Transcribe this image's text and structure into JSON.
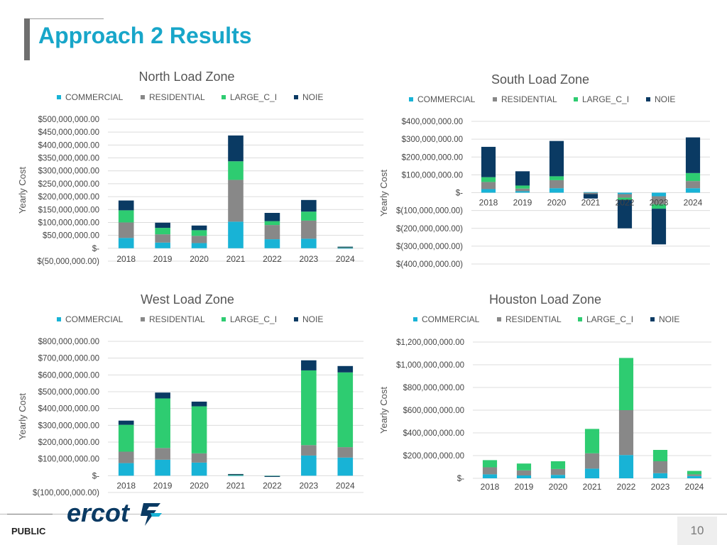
{
  "page": {
    "title": "Approach 2 Results",
    "footer_label": "PUBLIC",
    "page_number": "10",
    "logo_text": "ercot"
  },
  "colors": {
    "COMMERCIAL": "#18b3d6",
    "RESIDENTIAL": "#888888",
    "LARGE_C_I": "#2ecc71",
    "NOIE": "#0a3a63",
    "title": "#18a6c9",
    "logo": "#0a3a63"
  },
  "chart_data": [
    {
      "id": "north",
      "type": "bar",
      "stacked": true,
      "title": "North Load Zone",
      "ylabel": "Yearly Cost",
      "xlabel": "",
      "categories": [
        "2018",
        "2019",
        "2020",
        "2021",
        "2022",
        "2023",
        "2024"
      ],
      "ylim": [
        -50000000,
        500000000
      ],
      "yticks": [
        -50000000,
        0,
        50000000,
        100000000,
        150000000,
        200000000,
        250000000,
        300000000,
        350000000,
        400000000,
        450000000,
        500000000
      ],
      "ytick_labels": [
        "$(50,000,000.00)",
        "$-",
        "$50,000,000.00",
        "$100,000,000.00",
        "$150,000,000.00",
        "$200,000,000.00",
        "$250,000,000.00",
        "$300,000,000.00",
        "$350,000,000.00",
        "$400,000,000.00",
        "$450,000,000.00",
        "$500,000,000.00"
      ],
      "legend": [
        "COMMERCIAL",
        "RESIDENTIAL",
        "LARGE_C_I",
        "NOIE"
      ],
      "series": [
        {
          "name": "COMMERCIAL",
          "values": [
            40000000,
            22000000,
            20000000,
            103000000,
            35000000,
            37000000,
            1000000
          ]
        },
        {
          "name": "RESIDENTIAL",
          "values": [
            60000000,
            32000000,
            28000000,
            162000000,
            55000000,
            70000000,
            2000000
          ]
        },
        {
          "name": "LARGE_C_I",
          "values": [
            47000000,
            25000000,
            22000000,
            72000000,
            15000000,
            35000000,
            2000000
          ]
        },
        {
          "name": "NOIE",
          "values": [
            38000000,
            20000000,
            18000000,
            100000000,
            32000000,
            45000000,
            1000000
          ]
        }
      ]
    },
    {
      "id": "south",
      "type": "bar",
      "stacked": true,
      "title": "South Load Zone",
      "ylabel": "Yearly Cost",
      "xlabel": "",
      "categories": [
        "2018",
        "2019",
        "2020",
        "2021",
        "2022",
        "2023",
        "2024"
      ],
      "ylim": [
        -400000000,
        400000000
      ],
      "yticks": [
        -400000000,
        -300000000,
        -200000000,
        -100000000,
        0,
        100000000,
        200000000,
        300000000,
        400000000
      ],
      "ytick_labels": [
        "$(400,000,000.00)",
        "$(300,000,000.00)",
        "$(200,000,000.00)",
        "$(100,000,000.00)",
        "$-",
        "$100,000,000.00",
        "$200,000,000.00",
        "$300,000,000.00",
        "$400,000,000.00"
      ],
      "legend": [
        "COMMERCIAL",
        "RESIDENTIAL",
        "LARGE_C_I",
        "NOIE"
      ],
      "series": [
        {
          "name": "COMMERCIAL",
          "values": [
            20000000,
            8000000,
            25000000,
            3000000,
            -8000000,
            -20000000,
            25000000
          ]
        },
        {
          "name": "RESIDENTIAL",
          "values": [
            40000000,
            15000000,
            45000000,
            -8000000,
            -20000000,
            -45000000,
            40000000
          ]
        },
        {
          "name": "LARGE_C_I",
          "values": [
            27000000,
            17000000,
            22000000,
            0,
            -12000000,
            -25000000,
            45000000
          ]
        },
        {
          "name": "NOIE",
          "values": [
            170000000,
            80000000,
            198000000,
            -25000000,
            -160000000,
            -200000000,
            200000000
          ]
        }
      ]
    },
    {
      "id": "west",
      "type": "bar",
      "stacked": true,
      "title": "West Load Zone",
      "ylabel": "Yearly Cost",
      "xlabel": "",
      "categories": [
        "2018",
        "2019",
        "2020",
        "2021",
        "2022",
        "2023",
        "2024"
      ],
      "ylim": [
        -100000000,
        800000000
      ],
      "yticks": [
        -100000000,
        0,
        100000000,
        200000000,
        300000000,
        400000000,
        500000000,
        600000000,
        700000000,
        800000000
      ],
      "ytick_labels": [
        "$(100,000,000.00)",
        "$-",
        "$100,000,000.00",
        "$200,000,000.00",
        "$300,000,000.00",
        "$400,000,000.00",
        "$500,000,000.00",
        "$600,000,000.00",
        "$700,000,000.00",
        "$800,000,000.00"
      ],
      "legend": [
        "COMMERCIAL",
        "RESIDENTIAL",
        "LARGE_C_I",
        "NOIE"
      ],
      "series": [
        {
          "name": "COMMERCIAL",
          "values": [
            75000000,
            95000000,
            78000000,
            2000000,
            -1000000,
            120000000,
            108000000
          ]
        },
        {
          "name": "RESIDENTIAL",
          "values": [
            68000000,
            70000000,
            55000000,
            3000000,
            -1000000,
            62000000,
            62000000
          ]
        },
        {
          "name": "LARGE_C_I",
          "values": [
            160000000,
            295000000,
            280000000,
            3000000,
            -1000000,
            445000000,
            445000000
          ]
        },
        {
          "name": "NOIE",
          "values": [
            25000000,
            35000000,
            28000000,
            2000000,
            -1000000,
            60000000,
            38000000
          ]
        }
      ]
    },
    {
      "id": "houston",
      "type": "bar",
      "stacked": true,
      "title": "Houston Load Zone",
      "ylabel": "Yearly Cost",
      "xlabel": "",
      "categories": [
        "2018",
        "2019",
        "2020",
        "2021",
        "2022",
        "2023",
        "2024"
      ],
      "ylim": [
        0,
        1200000000
      ],
      "yticks": [
        0,
        200000000,
        400000000,
        600000000,
        800000000,
        1000000000,
        1200000000
      ],
      "ytick_labels": [
        "$-",
        "$200,000,000.00",
        "$400,000,000.00",
        "$600,000,000.00",
        "$800,000,000.00",
        "$1,000,000,000.00",
        "$1,200,000,000.00"
      ],
      "legend": [
        "COMMERCIAL",
        "RESIDENTIAL",
        "LARGE_C_I",
        "NOIE"
      ],
      "series": [
        {
          "name": "COMMERCIAL",
          "values": [
            35000000,
            25000000,
            30000000,
            85000000,
            205000000,
            45000000,
            20000000
          ]
        },
        {
          "name": "RESIDENTIAL",
          "values": [
            62000000,
            45000000,
            52000000,
            135000000,
            395000000,
            105000000,
            15000000
          ]
        },
        {
          "name": "LARGE_C_I",
          "values": [
            63000000,
            60000000,
            68000000,
            215000000,
            460000000,
            100000000,
            30000000
          ]
        },
        {
          "name": "NOIE",
          "values": [
            0,
            0,
            0,
            0,
            0,
            0,
            0
          ]
        }
      ]
    }
  ]
}
